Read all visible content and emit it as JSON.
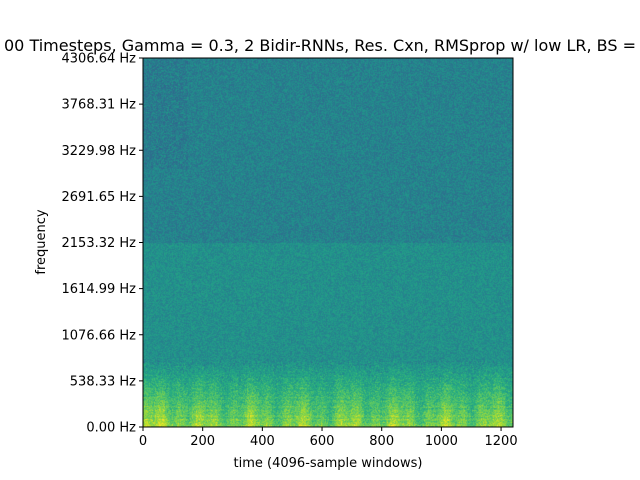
{
  "chart_data": {
    "type": "heatmap",
    "title": "00 Timesteps, Gamma = 0.3, 2 Bidir-RNNs, Res. Cxn, RMSprop w/ low LR, BS =",
    "xlabel": "time (4096-sample windows)",
    "ylabel": "frequency",
    "xlim": [
      0,
      1240
    ],
    "ylim": [
      0,
      4306.64
    ],
    "x_ticks": [
      0,
      200,
      400,
      600,
      800,
      1000,
      1200
    ],
    "x_tick_labels": [
      "0",
      "200",
      "400",
      "600",
      "800",
      "1000",
      "1200"
    ],
    "y_ticks": [
      0,
      538.33,
      1076.66,
      1614.99,
      2153.32,
      2691.65,
      3229.98,
      3768.31,
      4306.64
    ],
    "y_tick_labels": [
      "0.00 Hz",
      "538.33 Hz",
      "1076.66 Hz",
      "1614.99 Hz",
      "2153.32 Hz",
      "2691.65 Hz",
      "3229.98 Hz",
      "3768.31 Hz",
      "4306.64 Hz"
    ],
    "colormap": "viridis",
    "grid": false,
    "colors": {
      "low": "#2c7e8e",
      "mid": "#23998a",
      "high": "#a8db34",
      "peak": "#d6e52a"
    }
  }
}
